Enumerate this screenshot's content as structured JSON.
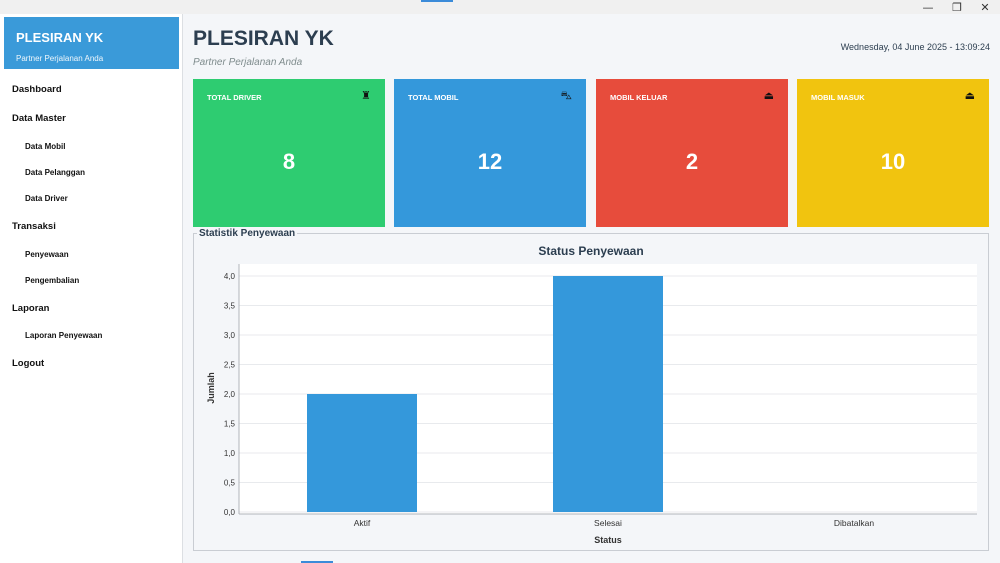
{
  "window": {
    "minimize": "—",
    "restore": "❐",
    "close": "✕"
  },
  "sidebar": {
    "brand_title": "PLESIRAN YK",
    "brand_subtitle": "Partner Perjalanan Anda",
    "menu": {
      "dashboard": "Dashboard",
      "data_master": "Data Master",
      "data_mobil": "Data Mobil",
      "data_pelanggan": "Data Pelanggan",
      "data_driver": "Data Driver",
      "transaksi": "Transaksi",
      "penyewaan": "Penyewaan",
      "pengembalian": "Pengembalian",
      "laporan": "Laporan",
      "laporan_penyewaan": "Laporan Penyewaan",
      "logout": "Logout"
    }
  },
  "header": {
    "title": "PLESIRAN YK",
    "subtitle": "Partner Perjalanan Anda",
    "datetime": "Wednesday, 04 June 2025 - 13:09:24"
  },
  "cards": [
    {
      "label": "TOTAL DRIVER",
      "value": "8",
      "color": "#2ecc71",
      "icon": "driver-icon",
      "glyph": "♜"
    },
    {
      "label": "TOTAL MOBIL",
      "value": "12",
      "color": "#3498db",
      "icon": "car-icon",
      "glyph": "⛍"
    },
    {
      "label": "MOBIL KELUAR",
      "value": "2",
      "color": "#e74c3c",
      "icon": "car-out-icon",
      "glyph": "⏏"
    },
    {
      "label": "MOBIL MASUK",
      "value": "10",
      "color": "#f1c40f",
      "icon": "car-in-icon",
      "glyph": "⏏"
    }
  ],
  "statistics": {
    "panel_title": "Statistik Penyewaan"
  },
  "chart_data": {
    "type": "bar",
    "title": "Status Penyewaan",
    "xlabel": "Status",
    "ylabel": "Jumlah",
    "categories": [
      "Aktif",
      "Selesai",
      "Dibatalkan"
    ],
    "values": [
      2,
      4,
      0
    ],
    "ylim": [
      0,
      4
    ],
    "yticks": [
      "0,0",
      "0,5",
      "1,0",
      "1,5",
      "2,0",
      "2,5",
      "3,0",
      "3,5",
      "4,0"
    ],
    "bar_color": "#3498db",
    "grid": true
  }
}
